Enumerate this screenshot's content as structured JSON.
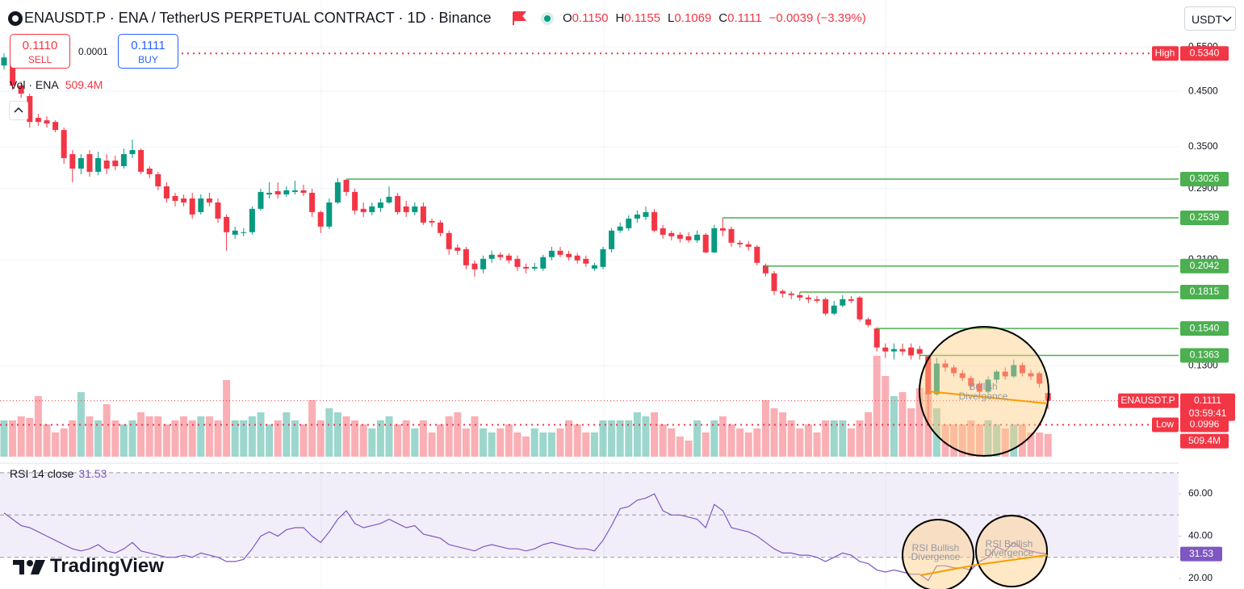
{
  "header": {
    "symbol": "ENAUSDT.P · ENA / TetherUS PERPETUAL CONTRACT · 1D · Binance",
    "ohlc": [
      {
        "key": "O",
        "value": "0.1150"
      },
      {
        "key": "H",
        "value": "0.1155"
      },
      {
        "key": "L",
        "value": "0.1069"
      },
      {
        "key": "C",
        "value": "0.1111"
      }
    ],
    "change": "−0.0039 (−3.39%)",
    "currency": "USDT"
  },
  "trade": {
    "sell_price": "0.1110",
    "sell": "SELL",
    "spread": "0.0001",
    "buy_price": "0.1111",
    "buy": "BUY"
  },
  "brand": "TradingView",
  "chart_data": [
    {
      "type": "candlestick",
      "log_scale": true,
      "grid": true,
      "up_color": "#089981",
      "down_color": "#f23645",
      "level_color": "#4caf50",
      "ylim": [
        0.085,
        0.68
      ],
      "yticks": [
        {
          "value": 0.55,
          "label": "0.5500"
        },
        {
          "value": 0.45,
          "label": "0.4500"
        },
        {
          "value": 0.35,
          "label": "0.3500"
        },
        {
          "value": 0.29,
          "label": "0.2900"
        },
        {
          "value": 0.21,
          "label": "0.2100"
        },
        {
          "value": 0.13,
          "label": "0.1300"
        }
      ],
      "open": [
        0.5057,
        0.5057,
        0.4617,
        0.4404,
        0.3991,
        0.3947,
        0.3918,
        0.3778,
        0.3387,
        0.3173,
        0.3387,
        0.3127,
        0.329,
        0.329,
        0.3208,
        0.3387,
        0.345,
        0.3173,
        0.3093,
        0.2928,
        0.2803,
        0.2772,
        0.2772,
        0.2606,
        0.2772,
        0.2722,
        0.255,
        0.2353,
        0.2371,
        0.238,
        0.2645,
        0.2823,
        0.2865,
        0.2823,
        0.2855,
        0.2876,
        0.2844,
        0.2606,
        0.2441,
        0.2722,
        0.3015,
        0.2855,
        0.2645,
        0.2606,
        0.2655,
        0.2722,
        0.2803,
        0.2674,
        0.2606,
        0.2674,
        0.2504,
        0.2486,
        0.2371,
        0.222,
        0.2204,
        0.2065,
        0.2012,
        0.211,
        0.2149,
        0.2141,
        0.211,
        0.2034,
        0.2019,
        0.2019,
        0.2126,
        0.2188,
        0.2157,
        0.2141,
        0.211,
        0.2019,
        0.2034,
        0.2204,
        0.2397,
        0.2423,
        0.2531,
        0.255,
        0.2606,
        0.2423,
        0.2371,
        0.2353,
        0.2336,
        0.2294,
        0.2353,
        0.2172,
        0.2423,
        0.2415,
        0.2269,
        0.2253,
        0.2228,
        0.2049,
        0.1976,
        0.1824,
        0.1804,
        0.1791,
        0.1771,
        0.1758,
        0.1758,
        0.1647,
        0.1708,
        0.1758,
        0.1771,
        0.1605,
        0.154,
        0.1413,
        0.1388,
        0.1403,
        0.1413,
        0.1403,
        0.1358,
        0.1144,
        0.1314,
        0.1291,
        0.1258,
        0.1231,
        0.12,
        0.1157,
        0.1222,
        0.1267,
        0.124,
        0.1305,
        0.1258,
        0.1258,
        0.115
      ],
      "high": [
        0.534,
        0.515,
        0.4701,
        0.4452,
        0.4064,
        0.402,
        0.3947,
        0.382,
        0.345,
        0.3387,
        0.345,
        0.3425,
        0.3387,
        0.3363,
        0.3475,
        0.3617,
        0.3475,
        0.3208,
        0.3127,
        0.2982,
        0.2844,
        0.2823,
        0.2844,
        0.2823,
        0.2844,
        0.2772,
        0.2578,
        0.2441,
        0.2423,
        0.2674,
        0.2897,
        0.2982,
        0.2982,
        0.2928,
        0.3004,
        0.295,
        0.2897,
        0.2625,
        0.2772,
        0.3037,
        0.3026,
        0.2897,
        0.2722,
        0.2722,
        0.2772,
        0.2928,
        0.2844,
        0.2742,
        0.2722,
        0.2722,
        0.2531,
        0.2513,
        0.2397,
        0.2253,
        0.2228,
        0.2095,
        0.2141,
        0.2188,
        0.2172,
        0.2165,
        0.2141,
        0.2065,
        0.2072,
        0.2149,
        0.2228,
        0.2228,
        0.2188,
        0.2165,
        0.2141,
        0.2072,
        0.2228,
        0.2423,
        0.2486,
        0.2569,
        0.2625,
        0.2674,
        0.2645,
        0.2459,
        0.2397,
        0.238,
        0.238,
        0.2397,
        0.2371,
        0.2459,
        0.2539,
        0.2441,
        0.2294,
        0.2286,
        0.2245,
        0.2065,
        0.1998,
        0.1837,
        0.1824,
        0.1815,
        0.1791,
        0.1784,
        0.1771,
        0.1745,
        0.1791,
        0.1784,
        0.1784,
        0.1618,
        0.1548,
        0.1439,
        0.1439,
        0.1439,
        0.1439,
        0.1424,
        0.136,
        0.1348,
        0.1338,
        0.1305,
        0.1277,
        0.1244,
        0.1213,
        0.124,
        0.1277,
        0.1291,
        0.1338,
        0.132,
        0.1277,
        0.1267,
        0.1155
      ],
      "low": [
        0.4965,
        0.4533,
        0.4371,
        0.382,
        0.3848,
        0.382,
        0.3738,
        0.3243,
        0.2982,
        0.3093,
        0.306,
        0.3082,
        0.3093,
        0.3149,
        0.3173,
        0.3327,
        0.3093,
        0.3037,
        0.2876,
        0.2722,
        0.2674,
        0.2674,
        0.2531,
        0.2578,
        0.2674,
        0.2486,
        0.2188,
        0.2311,
        0.2336,
        0.2353,
        0.2625,
        0.2772,
        0.2772,
        0.2793,
        0.2823,
        0.2803,
        0.255,
        0.2371,
        0.2415,
        0.2703,
        0.2803,
        0.2578,
        0.255,
        0.2569,
        0.2606,
        0.2703,
        0.2578,
        0.255,
        0.2569,
        0.2459,
        0.2441,
        0.2336,
        0.2149,
        0.2149,
        0.2012,
        0.1947,
        0.1976,
        0.2072,
        0.2095,
        0.2065,
        0.1998,
        0.1976,
        0.1998,
        0.1998,
        0.2095,
        0.2126,
        0.2095,
        0.2065,
        0.2034,
        0.1998,
        0.2012,
        0.2172,
        0.2371,
        0.2397,
        0.2486,
        0.2513,
        0.238,
        0.2311,
        0.2294,
        0.2269,
        0.2269,
        0.2269,
        0.2165,
        0.2165,
        0.2336,
        0.2228,
        0.222,
        0.2188,
        0.2049,
        0.1947,
        0.1791,
        0.1771,
        0.1758,
        0.1745,
        0.1727,
        0.1727,
        0.1635,
        0.1635,
        0.1695,
        0.1727,
        0.1588,
        0.1548,
        0.1388,
        0.1348,
        0.1338,
        0.1363,
        0.1338,
        0.1338,
        0.0996,
        0.1136,
        0.1267,
        0.124,
        0.1213,
        0.1165,
        0.1136,
        0.1144,
        0.12,
        0.1222,
        0.1231,
        0.124,
        0.1222,
        0.1178,
        0.1069
      ],
      "close": [
        0.5244,
        0.4617,
        0.4452,
        0.3918,
        0.3918,
        0.389,
        0.3778,
        0.3327,
        0.3173,
        0.3327,
        0.3127,
        0.3327,
        0.3173,
        0.3208,
        0.3387,
        0.345,
        0.3127,
        0.3093,
        0.2928,
        0.2772,
        0.2742,
        0.2722,
        0.2578,
        0.2772,
        0.2722,
        0.2531,
        0.238,
        0.2397,
        0.238,
        0.2645,
        0.2855,
        0.2844,
        0.2823,
        0.2876,
        0.2876,
        0.2844,
        0.2606,
        0.2441,
        0.2722,
        0.2982,
        0.2855,
        0.2625,
        0.2606,
        0.2674,
        0.2722,
        0.2793,
        0.2606,
        0.2606,
        0.2674,
        0.2486,
        0.2486,
        0.2371,
        0.2204,
        0.2188,
        0.2049,
        0.2012,
        0.211,
        0.2149,
        0.2126,
        0.2095,
        0.2034,
        0.2019,
        0.2034,
        0.2126,
        0.2188,
        0.2149,
        0.2126,
        0.2095,
        0.2065,
        0.2049,
        0.2204,
        0.2397,
        0.2441,
        0.2531,
        0.2578,
        0.2606,
        0.2397,
        0.2353,
        0.2336,
        0.2311,
        0.2294,
        0.2353,
        0.2172,
        0.2423,
        0.2397,
        0.2269,
        0.2253,
        0.2228,
        0.2072,
        0.1976,
        0.1824,
        0.1804,
        0.1791,
        0.1771,
        0.1758,
        0.1745,
        0.1647,
        0.1708,
        0.1758,
        0.1745,
        0.1605,
        0.1565,
        0.1413,
        0.1388,
        0.1403,
        0.1388,
        0.1363,
        0.1373,
        0.1144,
        0.1314,
        0.1291,
        0.1258,
        0.1231,
        0.1187,
        0.1157,
        0.1222,
        0.1267,
        0.124,
        0.1305,
        0.1258,
        0.124,
        0.12,
        0.1111
      ],
      "volume": [
        810,
        810,
        900,
        864,
        1350,
        720,
        540,
        630,
        810,
        1440,
        900,
        810,
        1170,
        810,
        720,
        810,
        990,
        900,
        900,
        720,
        810,
        900,
        810,
        900,
        900,
        810,
        1710,
        810,
        810,
        900,
        990,
        720,
        810,
        990,
        810,
        720,
        1260,
        810,
        1080,
        990,
        900,
        810,
        720,
        630,
        810,
        900,
        720,
        810,
        630,
        810,
        540,
        720,
        900,
        990,
        630,
        900,
        630,
        540,
        630,
        720,
        540,
        450,
        630,
        540,
        540,
        630,
        810,
        720,
        540,
        540,
        810,
        810,
        810,
        810,
        990,
        900,
        990,
        720,
        630,
        450,
        360,
        810,
        540,
        810,
        900,
        720,
        630,
        540,
        630,
        1260,
        1080,
        990,
        810,
        630,
        720,
        540,
        810,
        810,
        810,
        630,
        810,
        990,
        2250,
        1800,
        1350,
        1440,
        1080,
        1530,
        1440,
        1080,
        720,
        720,
        720,
        810,
        720,
        810,
        720,
        630,
        720,
        720,
        540,
        540,
        509.4
      ],
      "levels": [
        {
          "value": 0.3026,
          "label": "0.3026"
        },
        {
          "value": 0.2539,
          "label": "0.2539"
        },
        {
          "value": 0.2042,
          "label": "0.2042"
        },
        {
          "value": 0.1815,
          "label": "0.1815"
        },
        {
          "value": 0.154,
          "label": "0.1540"
        },
        {
          "value": 0.1363,
          "label": "0.1363"
        }
      ],
      "high_marker": {
        "label": "High",
        "value": 0.534,
        "value_label": "0.5340"
      },
      "low_marker": {
        "label": "Low",
        "value": 0.0996,
        "value_label": "0.0996"
      },
      "last_price": {
        "label": "ENAUSDT.P",
        "value": 0.1111,
        "value_label": "0.1111",
        "countdown": "03:59:41"
      },
      "volume_legend": {
        "label": "Vol · ENA",
        "value": 509.4,
        "value_label": "509.4M"
      },
      "annotation": [
        "Bullish",
        "Divergence"
      ]
    },
    {
      "type": "line",
      "title": "RSI 14 close",
      "color": "#7e57c2",
      "ylim": [
        15,
        73
      ],
      "yticks": [
        {
          "value": 60,
          "label": "60.00"
        },
        {
          "value": 40,
          "label": "40.00"
        },
        {
          "value": 20,
          "label": "20.00"
        }
      ],
      "band": [
        30,
        70
      ],
      "midline": 50,
      "values": [
        51,
        48,
        45,
        44,
        42,
        40,
        38,
        36,
        34,
        33,
        34,
        36,
        33,
        32,
        34,
        37,
        33,
        32,
        31,
        30,
        30,
        31,
        30,
        32,
        31,
        30,
        28,
        28,
        29,
        34,
        40,
        42,
        40,
        43,
        44,
        44,
        40,
        37,
        42,
        48,
        52,
        46,
        44,
        45,
        46,
        48,
        46,
        44,
        45,
        41,
        40,
        39,
        36,
        35,
        34,
        33,
        35,
        36,
        35,
        34,
        34,
        33,
        34,
        36,
        37,
        36,
        35,
        34,
        34,
        33,
        38,
        45,
        53,
        54,
        57,
        58,
        60,
        52,
        50,
        50,
        49,
        48,
        44,
        55,
        52,
        44,
        43,
        42,
        40,
        37,
        34,
        32,
        32,
        31,
        31,
        30,
        28,
        30,
        32,
        31,
        28,
        27,
        24,
        23,
        24,
        23,
        22,
        22,
        19,
        26,
        26,
        25,
        25,
        24,
        28,
        30,
        35,
        33,
        37,
        34,
        33,
        32,
        31.53
      ],
      "value_labels": {
        "122": "31.53"
      },
      "annotations": [
        [
          "RSI Bullish",
          "Divergence"
        ],
        [
          "RSI Bullish",
          "Divergence"
        ]
      ]
    }
  ]
}
